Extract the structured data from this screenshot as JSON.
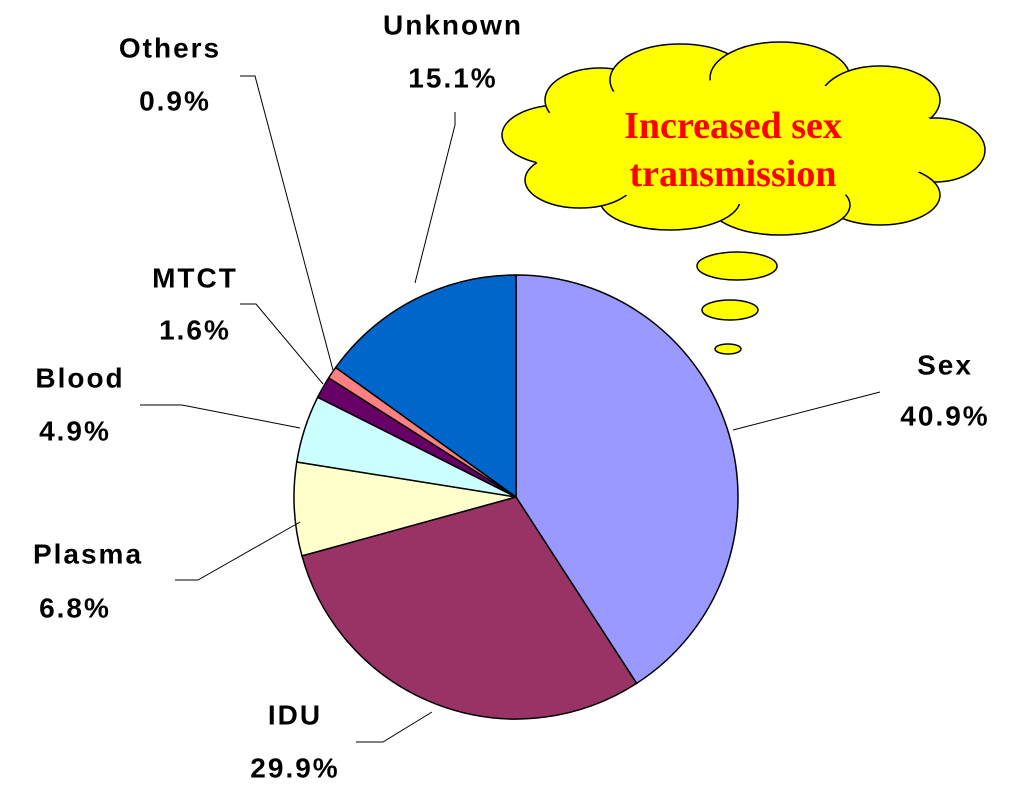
{
  "chart_data": {
    "type": "pie",
    "categories": [
      "Sex",
      "IDU",
      "Plasma",
      "Blood",
      "MTCT",
      "Others",
      "Unknown"
    ],
    "values": [
      40.9,
      29.9,
      6.8,
      4.9,
      1.6,
      0.9,
      15.1
    ],
    "value_labels": [
      "40.9%",
      "29.9%",
      "6.8%",
      "4.9%",
      "1.6%",
      "0.9%",
      "15.1%"
    ],
    "colors": [
      "#9999ff",
      "#993366",
      "#ffffcc",
      "#ccffff",
      "#660066",
      "#ff8080",
      "#0066cc"
    ],
    "annotation": "Increased sex transmission"
  }
}
